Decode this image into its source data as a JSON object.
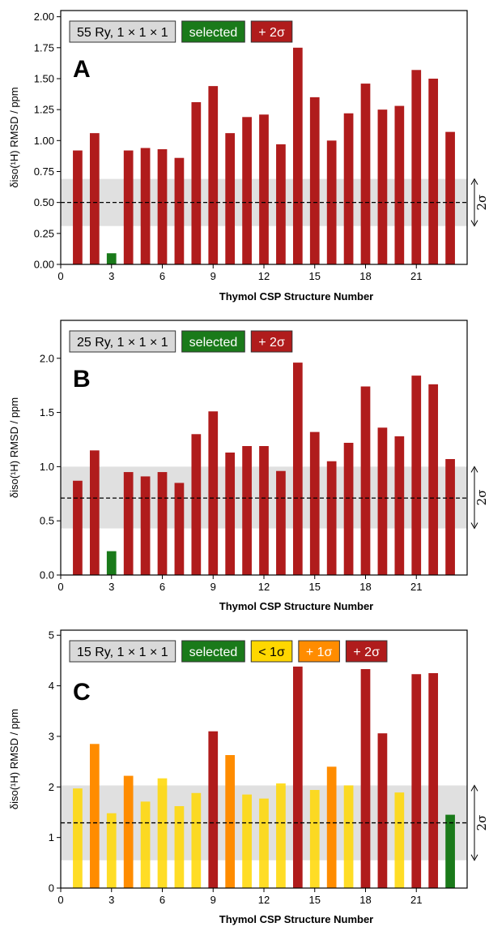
{
  "figure": {
    "sigma_label": "2σ",
    "colors": {
      "selected": "#1a7a1a",
      "minus1sigma": "#ffd700",
      "plus1sigma": "#ff8c00",
      "plus2sigma": "#b01c1c",
      "band": "#e0e0e0",
      "legend_box": "#d9d9d9"
    }
  },
  "chart_data": [
    {
      "type": "bar",
      "panel_letter": "A",
      "legend": [
        "55 Ry, 1 × 1 × 1",
        "selected",
        "+ 2σ"
      ],
      "legend_colors": [
        "#d9d9d9",
        "#1a7a1a",
        "#b01c1c"
      ],
      "xlabel": "Thymol CSP Structure Number",
      "ylabel": "δiso(¹H) RMSD / ppm",
      "xlim": [
        0,
        24
      ],
      "ylim": [
        0,
        2.05
      ],
      "xticks": [
        0,
        3,
        6,
        9,
        12,
        15,
        18,
        21
      ],
      "yticks": [
        0.0,
        0.25,
        0.5,
        0.75,
        1.0,
        1.25,
        1.5,
        1.75,
        2.0
      ],
      "ytick_labels": [
        "0.00",
        "0.25",
        "0.50",
        "0.75",
        "1.00",
        "1.25",
        "1.50",
        "1.75",
        "2.00"
      ],
      "x": [
        1,
        2,
        3,
        4,
        5,
        6,
        7,
        8,
        9,
        10,
        11,
        12,
        13,
        14,
        15,
        16,
        17,
        18,
        19,
        20,
        21,
        22,
        23
      ],
      "values": [
        0.92,
        1.06,
        0.09,
        0.92,
        0.94,
        0.93,
        0.86,
        1.31,
        1.44,
        1.06,
        1.19,
        1.21,
        0.97,
        1.75,
        1.35,
        1.0,
        1.22,
        1.46,
        1.25,
        1.28,
        1.57,
        1.5,
        1.07
      ],
      "categories": [
        "+2σ",
        "+2σ",
        "selected",
        "+2σ",
        "+2σ",
        "+2σ",
        "+2σ",
        "+2σ",
        "+2σ",
        "+2σ",
        "+2σ",
        "+2σ",
        "+2σ",
        "+2σ",
        "+2σ",
        "+2σ",
        "+2σ",
        "+2σ",
        "+2σ",
        "+2σ",
        "+2σ",
        "+2σ",
        "+2σ"
      ],
      "mean": 0.5,
      "band": [
        0.31,
        0.69
      ],
      "grid": false
    },
    {
      "type": "bar",
      "panel_letter": "B",
      "legend": [
        "25 Ry, 1 × 1 × 1",
        "selected",
        "+ 2σ"
      ],
      "legend_colors": [
        "#d9d9d9",
        "#1a7a1a",
        "#b01c1c"
      ],
      "xlabel": "Thymol CSP Structure Number",
      "ylabel": "δiso(¹H) RMSD / ppm",
      "xlim": [
        0,
        24
      ],
      "ylim": [
        0,
        2.35
      ],
      "xticks": [
        0,
        3,
        6,
        9,
        12,
        15,
        18,
        21
      ],
      "yticks": [
        0.0,
        0.5,
        1.0,
        1.5,
        2.0
      ],
      "ytick_labels": [
        "0.0",
        "0.5",
        "1.0",
        "1.5",
        "2.0"
      ],
      "x": [
        1,
        2,
        3,
        4,
        5,
        6,
        7,
        8,
        9,
        10,
        11,
        12,
        13,
        14,
        15,
        16,
        17,
        18,
        19,
        20,
        21,
        22,
        23
      ],
      "values": [
        0.87,
        1.15,
        0.22,
        0.95,
        0.91,
        0.95,
        0.85,
        1.3,
        1.51,
        1.13,
        1.19,
        1.19,
        0.96,
        1.96,
        1.32,
        1.05,
        1.22,
        1.74,
        1.36,
        1.28,
        1.84,
        1.76,
        1.07
      ],
      "categories": [
        "+2σ",
        "+2σ",
        "selected",
        "+2σ",
        "+2σ",
        "+2σ",
        "+2σ",
        "+2σ",
        "+2σ",
        "+2σ",
        "+2σ",
        "+2σ",
        "+2σ",
        "+2σ",
        "+2σ",
        "+2σ",
        "+2σ",
        "+2σ",
        "+2σ",
        "+2σ",
        "+2σ",
        "+2σ",
        "+2σ"
      ],
      "mean": 0.71,
      "band": [
        0.43,
        1.0
      ],
      "grid": false
    },
    {
      "type": "bar",
      "panel_letter": "C",
      "legend": [
        "15 Ry, 1 × 1 × 1",
        "selected",
        "< 1σ",
        "+ 1σ",
        "+ 2σ"
      ],
      "legend_colors": [
        "#d9d9d9",
        "#1a7a1a",
        "#ffd700",
        "#ff8c00",
        "#b01c1c"
      ],
      "xlabel": "Thymol CSP Structure Number",
      "ylabel": "δiso(¹H) RMSD / ppm",
      "xlim": [
        0,
        24
      ],
      "ylim": [
        0,
        5.1
      ],
      "xticks": [
        0,
        3,
        6,
        9,
        12,
        15,
        18,
        21
      ],
      "yticks": [
        0,
        1,
        2,
        3,
        4,
        5
      ],
      "ytick_labels": [
        "0",
        "1",
        "2",
        "3",
        "4",
        "5"
      ],
      "x": [
        1,
        2,
        3,
        4,
        5,
        6,
        7,
        8,
        9,
        10,
        11,
        12,
        13,
        14,
        15,
        16,
        17,
        18,
        19,
        20,
        21,
        22,
        23
      ],
      "values": [
        1.97,
        2.85,
        1.48,
        2.22,
        1.71,
        2.17,
        1.62,
        1.88,
        3.1,
        2.63,
        1.85,
        1.77,
        2.07,
        4.38,
        1.94,
        2.4,
        2.03,
        4.33,
        3.06,
        1.89,
        4.23,
        4.25,
        1.45
      ],
      "categories": [
        "<1σ",
        "+1σ",
        "<1σ",
        "+1σ",
        "<1σ",
        "<1σ",
        "<1σ",
        "<1σ",
        "+2σ",
        "+1σ",
        "<1σ",
        "<1σ",
        "<1σ",
        "+2σ",
        "<1σ",
        "+1σ",
        "<1σ",
        "+2σ",
        "+2σ",
        "<1σ",
        "+2σ",
        "+2σ",
        "selected"
      ],
      "mean": 1.29,
      "band": [
        0.55,
        2.03
      ],
      "grid": false
    }
  ]
}
